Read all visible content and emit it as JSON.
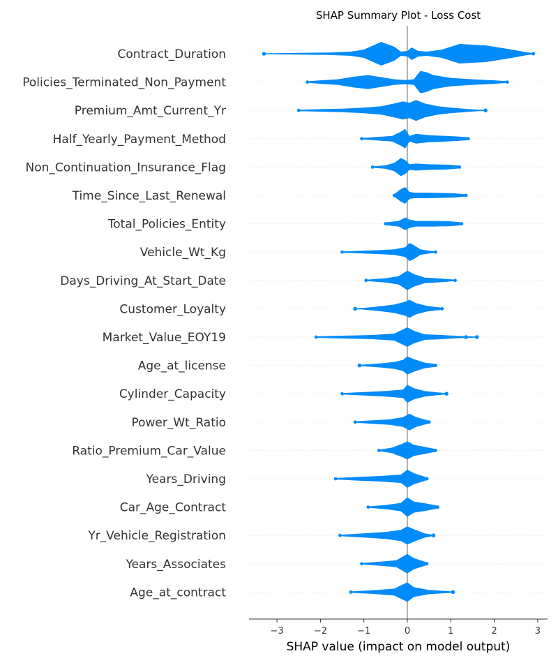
{
  "chart_data": {
    "type": "scatter",
    "subtype": "shap-beeswarm",
    "title": "SHAP Summary Plot - Loss Cost",
    "xlabel": "SHAP value (impact on model output)",
    "ylabel": "",
    "xlim": [
      -3.6,
      3.25
    ],
    "xticks": [
      -3,
      -2,
      -1,
      0,
      1,
      2,
      3
    ],
    "xtick_labels": [
      "−3",
      "−2",
      "−1",
      "0",
      "1",
      "2",
      "3"
    ],
    "color": "#008bfb",
    "grid": false,
    "features": [
      {
        "name": "Contract_Duration",
        "min": -3.3,
        "max": 2.9,
        "outliers": [
          -3.3
        ],
        "density": [
          [
            -3.1,
            0.7
          ],
          [
            -2.5,
            1.2
          ],
          [
            -1.8,
            1.8
          ],
          [
            -1.3,
            3
          ],
          [
            -1.0,
            6
          ],
          [
            -0.6,
            17
          ],
          [
            -0.3,
            10
          ],
          [
            -0.15,
            3
          ],
          [
            0.0,
            4
          ],
          [
            0.1,
            9
          ],
          [
            0.25,
            4
          ],
          [
            0.45,
            3
          ],
          [
            0.8,
            6
          ],
          [
            1.2,
            14
          ],
          [
            1.8,
            12
          ],
          [
            2.4,
            6
          ],
          [
            2.75,
            2
          ],
          [
            2.9,
            1
          ]
        ]
      },
      {
        "name": "Policies_Terminated_Non_Payment",
        "min": -2.3,
        "max": 2.3,
        "outliers": [],
        "density": [
          [
            -2.3,
            1
          ],
          [
            -2.0,
            2.5
          ],
          [
            -1.6,
            4
          ],
          [
            -1.2,
            8
          ],
          [
            -0.9,
            10
          ],
          [
            -0.6,
            7
          ],
          [
            -0.3,
            4
          ],
          [
            -0.05,
            3
          ],
          [
            0.15,
            4
          ],
          [
            0.3,
            16
          ],
          [
            0.45,
            14
          ],
          [
            0.6,
            10
          ],
          [
            1.0,
            6
          ],
          [
            1.5,
            4
          ],
          [
            2.0,
            2.5
          ],
          [
            2.3,
            1.2
          ]
        ]
      },
      {
        "name": "Premium_Amt_Current_Yr",
        "min": -2.5,
        "max": 1.8,
        "outliers": [
          1.8
        ],
        "density": [
          [
            -2.5,
            1
          ],
          [
            -2.0,
            1.8
          ],
          [
            -1.5,
            2.5
          ],
          [
            -1.0,
            4
          ],
          [
            -0.6,
            6
          ],
          [
            -0.3,
            10
          ],
          [
            -0.1,
            13
          ],
          [
            0.05,
            11
          ],
          [
            0.2,
            15
          ],
          [
            0.4,
            10
          ],
          [
            0.7,
            6
          ],
          [
            1.0,
            4
          ],
          [
            1.4,
            2
          ],
          [
            1.65,
            1
          ]
        ]
      },
      {
        "name": "Half_Yearly_Payment_Method",
        "min": -1.05,
        "max": 1.4,
        "outliers": [],
        "density": [
          [
            -1.05,
            1
          ],
          [
            -0.7,
            2.5
          ],
          [
            -0.35,
            4
          ],
          [
            -0.15,
            10
          ],
          [
            -0.05,
            14
          ],
          [
            0.05,
            4
          ],
          [
            0.2,
            7
          ],
          [
            0.5,
            5
          ],
          [
            0.9,
            4
          ],
          [
            1.2,
            3
          ],
          [
            1.4,
            2
          ]
        ]
      },
      {
        "name": "Non_Continuation_Insurance_Flag",
        "min": -0.8,
        "max": 1.2,
        "outliers": [],
        "density": [
          [
            -0.8,
            1
          ],
          [
            -0.5,
            2.5
          ],
          [
            -0.3,
            6
          ],
          [
            -0.15,
            13
          ],
          [
            -0.05,
            10
          ],
          [
            0.05,
            4
          ],
          [
            0.2,
            5
          ],
          [
            0.5,
            4
          ],
          [
            0.9,
            3.5
          ],
          [
            1.2,
            2
          ]
        ]
      },
      {
        "name": "Time_Since_Last_Renewal",
        "min": -0.3,
        "max": 1.35,
        "outliers": [],
        "density": [
          [
            -0.3,
            2
          ],
          [
            -0.15,
            9
          ],
          [
            -0.05,
            12
          ],
          [
            0.05,
            5
          ],
          [
            0.15,
            4
          ],
          [
            0.4,
            4
          ],
          [
            0.8,
            3.5
          ],
          [
            1.1,
            3
          ],
          [
            1.35,
            1.5
          ]
        ]
      },
      {
        "name": "Total_Policies_Entity",
        "min": -0.5,
        "max": 1.25,
        "outliers": [],
        "density": [
          [
            -0.5,
            2
          ],
          [
            -0.2,
            4
          ],
          [
            -0.05,
            9
          ],
          [
            0.05,
            6
          ],
          [
            0.2,
            4
          ],
          [
            0.6,
            4
          ],
          [
            1.0,
            3.5
          ],
          [
            1.25,
            2
          ]
        ]
      },
      {
        "name": "Vehicle_Wt_Kg",
        "min": -1.5,
        "max": 0.65,
        "outliers": [],
        "density": [
          [
            -1.5,
            1
          ],
          [
            -1.0,
            2
          ],
          [
            -0.6,
            3
          ],
          [
            -0.3,
            4
          ],
          [
            -0.05,
            7
          ],
          [
            0.05,
            13
          ],
          [
            0.15,
            10
          ],
          [
            0.3,
            4
          ],
          [
            0.5,
            2
          ],
          [
            0.65,
            1
          ]
        ]
      },
      {
        "name": "Days_Driving_At_Start_Date",
        "min": -0.95,
        "max": 1.1,
        "outliers": [],
        "density": [
          [
            -0.95,
            1
          ],
          [
            -0.5,
            3
          ],
          [
            -0.2,
            6
          ],
          [
            0.0,
            14
          ],
          [
            0.15,
            9
          ],
          [
            0.4,
            4
          ],
          [
            0.8,
            2.5
          ],
          [
            1.1,
            1
          ]
        ]
      },
      {
        "name": "Customer_Loyalty",
        "min": -1.2,
        "max": 0.8,
        "outliers": [
          -1.2
        ],
        "density": [
          [
            -1.05,
            1
          ],
          [
            -0.7,
            3
          ],
          [
            -0.3,
            6
          ],
          [
            -0.05,
            10
          ],
          [
            0.05,
            13
          ],
          [
            0.2,
            8
          ],
          [
            0.45,
            4
          ],
          [
            0.8,
            1.5
          ]
        ]
      },
      {
        "name": "Market_Value_EOY19",
        "min": -2.1,
        "max": 1.6,
        "outliers": [
          1.35,
          1.6
        ],
        "density": [
          [
            -2.1,
            1
          ],
          [
            -1.5,
            2
          ],
          [
            -0.8,
            3
          ],
          [
            -0.3,
            5
          ],
          [
            0.0,
            14
          ],
          [
            0.15,
            9
          ],
          [
            0.4,
            4
          ],
          [
            0.8,
            3
          ],
          [
            1.2,
            1.5
          ]
        ]
      },
      {
        "name": "Age_at_license",
        "min": -1.1,
        "max": 0.65,
        "outliers": [
          -1.1
        ],
        "density": [
          [
            -0.95,
            1.5
          ],
          [
            -0.6,
            3
          ],
          [
            -0.3,
            5
          ],
          [
            -0.1,
            8
          ],
          [
            0.0,
            13
          ],
          [
            0.15,
            9
          ],
          [
            0.4,
            4
          ],
          [
            0.65,
            2
          ]
        ]
      },
      {
        "name": "Cylinder_Capacity",
        "min": -1.5,
        "max": 0.9,
        "outliers": [
          0.9
        ],
        "density": [
          [
            -1.5,
            1
          ],
          [
            -1.0,
            2.5
          ],
          [
            -0.5,
            4
          ],
          [
            -0.1,
            6
          ],
          [
            0.0,
            13
          ],
          [
            0.15,
            8
          ],
          [
            0.4,
            4
          ],
          [
            0.7,
            2
          ]
        ]
      },
      {
        "name": "Power_Wt_Ratio",
        "min": -1.2,
        "max": 0.5,
        "outliers": [],
        "density": [
          [
            -1.2,
            1
          ],
          [
            -0.8,
            2.5
          ],
          [
            -0.4,
            4
          ],
          [
            -0.1,
            7
          ],
          [
            0.05,
            12
          ],
          [
            0.2,
            7
          ],
          [
            0.5,
            2
          ]
        ]
      },
      {
        "name": "Ratio_Premium_Car_Value",
        "min": -0.65,
        "max": 0.65,
        "outliers": [],
        "density": [
          [
            -0.65,
            1
          ],
          [
            -0.35,
            4
          ],
          [
            -0.1,
            10
          ],
          [
            0.0,
            13
          ],
          [
            0.15,
            8
          ],
          [
            0.4,
            5
          ],
          [
            0.65,
            2
          ]
        ]
      },
      {
        "name": "Years_Driving",
        "min": -1.65,
        "max": 0.45,
        "outliers": [],
        "density": [
          [
            -1.65,
            1
          ],
          [
            -1.2,
            2.5
          ],
          [
            -0.6,
            4
          ],
          [
            -0.15,
            6
          ],
          [
            0.0,
            13
          ],
          [
            0.15,
            8
          ],
          [
            0.45,
            2
          ]
        ]
      },
      {
        "name": "Car_Age_Contract",
        "min": -0.9,
        "max": 0.7,
        "outliers": [],
        "density": [
          [
            -0.9,
            1
          ],
          [
            -0.5,
            3
          ],
          [
            -0.15,
            6
          ],
          [
            0.0,
            14
          ],
          [
            0.15,
            8
          ],
          [
            0.45,
            5
          ],
          [
            0.7,
            2
          ]
        ]
      },
      {
        "name": "Yr_Vehicle_Registration",
        "min": -1.55,
        "max": 0.6,
        "outliers": [
          0.6
        ],
        "density": [
          [
            -1.55,
            1
          ],
          [
            -1.0,
            3
          ],
          [
            -0.5,
            5
          ],
          [
            -0.15,
            8
          ],
          [
            0.0,
            13
          ],
          [
            0.15,
            9
          ],
          [
            0.4,
            3
          ]
        ]
      },
      {
        "name": "Years_Associates",
        "min": -1.05,
        "max": 0.45,
        "outliers": [],
        "density": [
          [
            -1.05,
            1
          ],
          [
            -0.6,
            3
          ],
          [
            -0.25,
            5
          ],
          [
            0.0,
            14
          ],
          [
            0.15,
            8
          ],
          [
            0.45,
            2
          ]
        ]
      },
      {
        "name": "Age_at_contract",
        "min": -1.3,
        "max": 1.05,
        "outliers": [
          1.05
        ],
        "density": [
          [
            -1.3,
            1
          ],
          [
            -0.8,
            2.5
          ],
          [
            -0.3,
            5
          ],
          [
            0.0,
            14
          ],
          [
            0.15,
            7
          ],
          [
            0.5,
            3
          ],
          [
            0.9,
            1.5
          ]
        ]
      }
    ]
  }
}
